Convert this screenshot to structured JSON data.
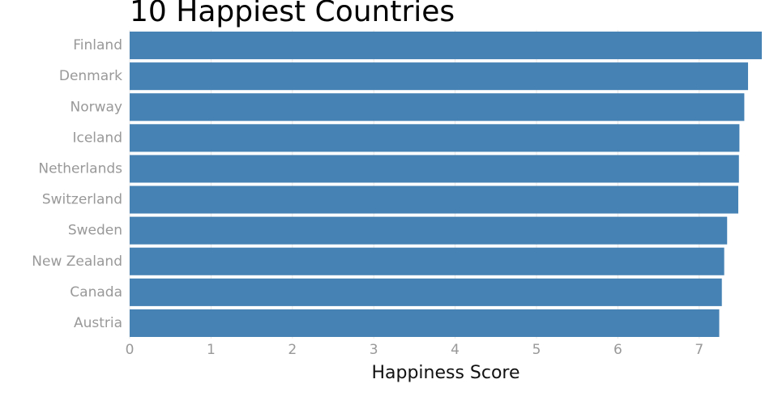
{
  "chart_data": {
    "type": "bar",
    "orientation": "horizontal",
    "title": "10 Happiest Countries",
    "x_label": "Happiness Score",
    "categories": [
      "Finland",
      "Denmark",
      "Norway",
      "Iceland",
      "Netherlands",
      "Switzerland",
      "Sweden",
      "New Zealand",
      "Canada",
      "Austria"
    ],
    "values": [
      7.769,
      7.6,
      7.554,
      7.494,
      7.488,
      7.48,
      7.343,
      7.307,
      7.278,
      7.246
    ],
    "color": "#4682b4",
    "xlim": [
      0,
      7.769
    ],
    "xticks": [
      0,
      1,
      2,
      3,
      4,
      5,
      6,
      7
    ],
    "grid": true
  }
}
